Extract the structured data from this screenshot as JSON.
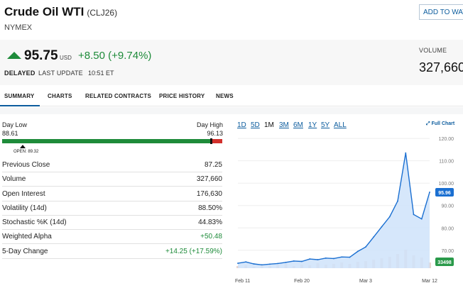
{
  "header": {
    "title": "Crude Oil WTI",
    "symbol": "(CLJ26)",
    "exchange": "NYMEX",
    "watchlist_button": "ADD TO WATCHLIST"
  },
  "quote": {
    "price": "95.75",
    "currency": "USD",
    "change": "+8.50 (+9.74%)",
    "delayed": "DELAYED",
    "last_update_label": "LAST UPDATE",
    "last_update_time": "10:51 ET",
    "volume_label": "VOLUME",
    "volume_value": "327,660",
    "up_color": "#1e8b3a"
  },
  "tabs": [
    {
      "label": "SUMMARY",
      "active": true
    },
    {
      "label": "CHARTS",
      "active": false
    },
    {
      "label": "RELATED CONTRACTS",
      "active": false
    },
    {
      "label": "PRICE HISTORY",
      "active": false
    },
    {
      "label": "NEWS",
      "active": false
    }
  ],
  "day_range": {
    "low_label": "Day Low",
    "low_value": "88.61",
    "high_label": "Day High",
    "high_value": "96.13",
    "open_label": "OPEN:  89.32",
    "low": 88.61,
    "high": 96.13,
    "current": 95.75,
    "open": 89.32
  },
  "stats": [
    {
      "label": "Previous Close",
      "value": "87.25",
      "positive": false
    },
    {
      "label": "Volume",
      "value": "327,660",
      "positive": false
    },
    {
      "label": "Open Interest",
      "value": "176,630",
      "positive": false
    },
    {
      "label": "Volatility (14d)",
      "value": "88.50%",
      "positive": false
    },
    {
      "label": "Stochastic %K (14d)",
      "value": "44.83%",
      "positive": false
    },
    {
      "label": "Weighted Alpha",
      "value": "+50.48",
      "positive": true
    },
    {
      "label": "5-Day Change",
      "value": "+14.25 (+17.59%)",
      "positive": true
    }
  ],
  "chart": {
    "periods": [
      "1D",
      "5D",
      "1M",
      "3M",
      "6M",
      "1Y",
      "5Y",
      "ALL"
    ],
    "active_period": "1M",
    "full_chart_label": "Full Chart",
    "price_badge": "95.96",
    "volume_badge": "33498",
    "line_color": "#1a6fd1",
    "fill_color": "#cfe3fa",
    "badge_color": "#1a6fd1",
    "volume_badge_color": "#2a9a4a"
  },
  "chart_data": {
    "type": "area",
    "y_ticks": [
      "120.00",
      "110.00",
      "100.00",
      "90.00",
      "80.00",
      "70.00"
    ],
    "ylim": [
      62,
      121
    ],
    "x_labels": [
      "Feb 11",
      "Feb 20",
      "Mar 3",
      "Mar 12"
    ],
    "x_label_index": [
      0,
      8,
      16,
      24
    ],
    "series": [
      {
        "values": [
          64.2,
          64.8,
          63.9,
          63.5,
          63.8,
          64.1,
          64.6,
          65.2,
          65.0,
          66.1,
          65.8,
          66.5,
          66.3,
          67.0,
          66.9,
          69.5,
          71.5,
          76.0,
          80.5,
          85.0,
          92.0,
          113.5,
          86.0,
          84.0,
          95.96
        ]
      }
    ],
    "volume_values": [
      3,
      4,
      2,
      5,
      3,
      4,
      6,
      3,
      5,
      4,
      7,
      5,
      6,
      8,
      6,
      9,
      10,
      12,
      14,
      16,
      20,
      26,
      18,
      15,
      8
    ]
  }
}
